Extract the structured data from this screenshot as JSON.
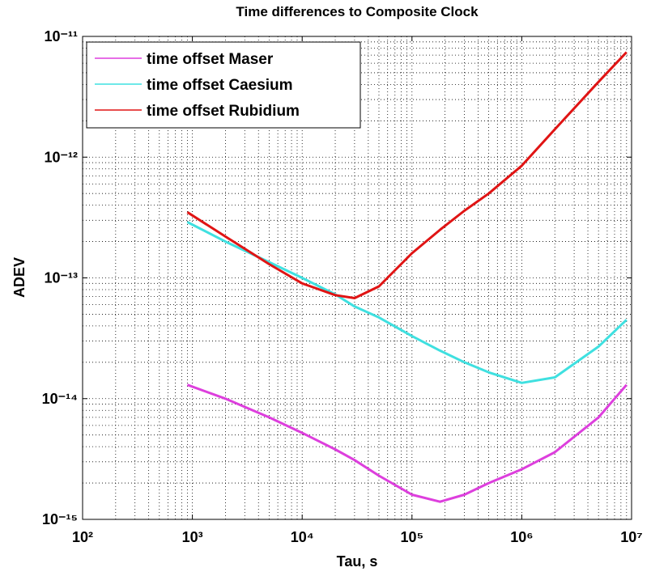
{
  "chart_data": {
    "type": "line",
    "title": "Time differences to Composite Clock",
    "xlabel": "Tau, s",
    "ylabel": "ADEV",
    "xscale": "log",
    "yscale": "log",
    "grid": true,
    "minor_grid": true,
    "legend": "upper left",
    "xlim": [
      100,
      10000000
    ],
    "ylim": [
      1e-15,
      1e-11
    ],
    "xticks": [
      {
        "value": 100,
        "label": "10²"
      },
      {
        "value": 1000,
        "label": "10³"
      },
      {
        "value": 10000,
        "label": "10⁴"
      },
      {
        "value": 100000,
        "label": "10⁵"
      },
      {
        "value": 1000000,
        "label": "10⁶"
      },
      {
        "value": 10000000,
        "label": "10⁷"
      }
    ],
    "yticks": [
      {
        "value": 1e-15,
        "label": "10⁻¹⁵"
      },
      {
        "value": 1e-14,
        "label": "10⁻¹⁴"
      },
      {
        "value": 1e-13,
        "label": "10⁻¹³"
      },
      {
        "value": 1e-12,
        "label": "10⁻¹²"
      },
      {
        "value": 1e-11,
        "label": "10⁻¹¹"
      }
    ],
    "x": [
      900,
      2000,
      5000,
      10000,
      20000,
      30000,
      50000,
      100000,
      180000,
      300000,
      500000,
      1000000,
      2000000,
      5000000,
      9000000
    ],
    "series": [
      {
        "name": "time offset Maser",
        "color": "#dd3fdd",
        "values": [
          1.3e-14,
          1e-14,
          7e-15,
          5.2e-15,
          3.8e-15,
          3.1e-15,
          2.3e-15,
          1.6e-15,
          1.4e-15,
          1.6e-15,
          2e-15,
          2.6e-15,
          3.6e-15,
          7e-15,
          1.3e-14
        ]
      },
      {
        "name": "time offset Caesium",
        "color": "#3fe0e0",
        "values": [
          2.9e-13,
          2e-13,
          1.35e-13,
          1e-13,
          7.3e-14,
          5.8e-14,
          4.7e-14,
          3.3e-14,
          2.5e-14,
          2e-14,
          1.65e-14,
          1.35e-14,
          1.5e-14,
          2.7e-14,
          4.5e-14
        ]
      },
      {
        "name": "time offset Rubidium",
        "color": "#e01414",
        "values": [
          3.5e-13,
          2.2e-13,
          1.3e-13,
          9e-14,
          7.2e-14,
          6.8e-14,
          8.5e-14,
          1.6e-13,
          2.5e-13,
          3.6e-13,
          5e-13,
          8.5e-13,
          1.7e-12,
          4.2e-12,
          7.4e-12
        ]
      }
    ]
  }
}
